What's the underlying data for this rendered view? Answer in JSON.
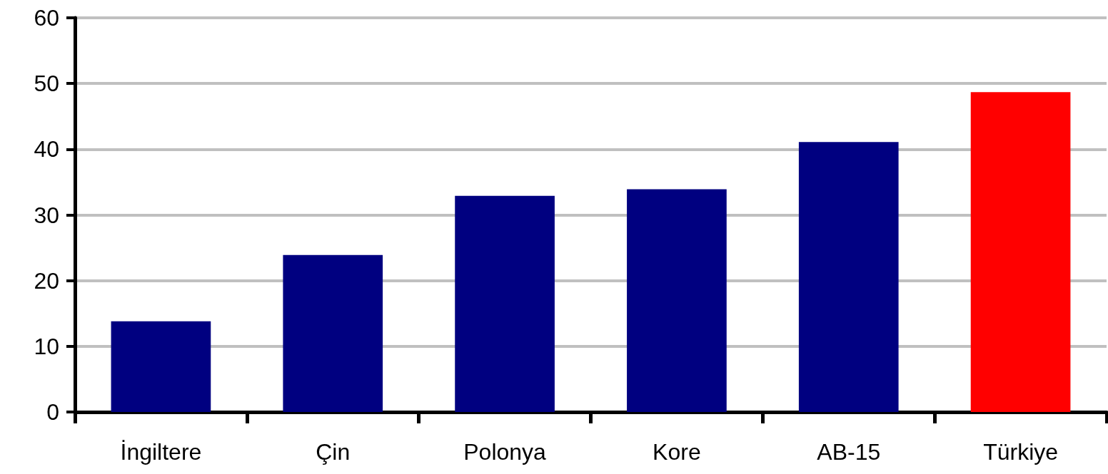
{
  "chart_data": {
    "type": "bar",
    "categories": [
      "İngiltere",
      "Çin",
      "Polonya",
      "Kore",
      "AB-15",
      "Türkiye"
    ],
    "values": [
      13.8,
      23.9,
      32.9,
      33.9,
      41.1,
      48.7
    ],
    "colors": [
      "#000080",
      "#000080",
      "#000080",
      "#000080",
      "#000080",
      "#ff0000"
    ],
    "ylim": [
      0,
      60
    ],
    "yticks": [
      0,
      10,
      20,
      30,
      40,
      50,
      60
    ],
    "grid": "y"
  }
}
